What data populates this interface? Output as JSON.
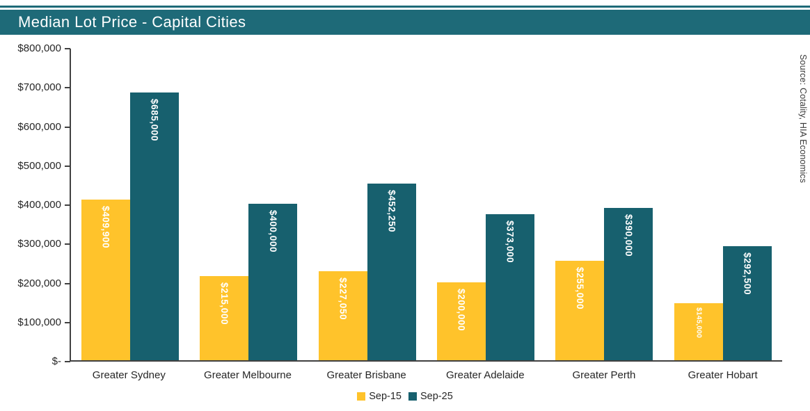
{
  "title": "Median Lot Price - Capital Cities",
  "source_note": "Source: Cotality, HIA Economics",
  "colors": {
    "title_bar": "#1E6A78",
    "accent_yellow": "#FFC32B",
    "accent_teal": "#17606E",
    "axis": "#404040"
  },
  "chart_data": {
    "type": "bar",
    "title": "Median Lot Price - Capital Cities",
    "categories": [
      "Greater Sydney",
      "Greater Melbourne",
      "Greater Brisbane",
      "Greater Adelaide",
      "Greater Perth",
      "Greater Hobart"
    ],
    "series": [
      {
        "name": "Sep-15",
        "color": "#FFC32B",
        "values": [
          409900,
          215000,
          227050,
          200000,
          255000,
          145000
        ]
      },
      {
        "name": "Sep-25",
        "color": "#17606E",
        "values": [
          685000,
          400000,
          452250,
          373000,
          390000,
          292500
        ]
      }
    ],
    "data_labels": true,
    "data_label_orientation": "vertical",
    "xlabel": "",
    "ylabel": "",
    "ylim": [
      0,
      800000
    ],
    "ytick_step": 100000,
    "ytick_format": "$#,##0",
    "zero_tick_label": "$-",
    "legend_position": "bottom",
    "grid": false
  }
}
